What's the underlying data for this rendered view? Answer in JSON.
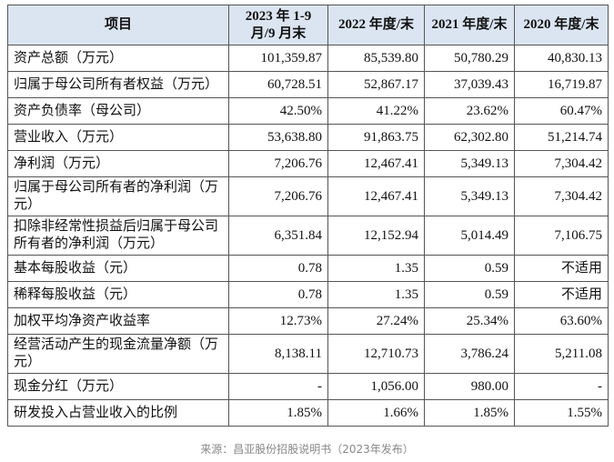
{
  "table": {
    "columns": [
      "项目",
      "2023 年 1-9 月/9 月末",
      "2022 年度/末",
      "2021 年度/末",
      "2020 年度/末"
    ],
    "rows": [
      [
        "资产总额（万元）",
        "101,359.87",
        "85,539.80",
        "50,780.29",
        "40,830.13"
      ],
      [
        "归属于母公司所有者权益（万元）",
        "60,728.51",
        "52,867.17",
        "37,039.43",
        "16,719.87"
      ],
      [
        "资产负债率（母公司）",
        "42.50%",
        "41.22%",
        "23.62%",
        "60.47%"
      ],
      [
        "营业收入（万元）",
        "53,638.80",
        "91,863.75",
        "62,302.80",
        "51,214.74"
      ],
      [
        "净利润（万元）",
        "7,206.76",
        "12,467.41",
        "5,349.13",
        "7,304.42"
      ],
      [
        "归属于母公司所有者的净利润（万元）",
        "7,206.76",
        "12,467.41",
        "5,349.13",
        "7,304.42"
      ],
      [
        "扣除非经常性损益后归属于母公司所有者的净利润（万元）",
        "6,351.84",
        "12,152.94",
        "5,014.49",
        "7,106.75"
      ],
      [
        "基本每股收益（元）",
        "0.78",
        "1.35",
        "0.59",
        "不适用"
      ],
      [
        "稀释每股收益（元）",
        "0.78",
        "1.35",
        "0.59",
        "不适用"
      ],
      [
        "加权平均净资产收益率",
        "12.73%",
        "27.24%",
        "25.34%",
        "63.60%"
      ],
      [
        "经营活动产生的现金流量净额（万元）",
        "8,138.11",
        "12,710.73",
        "3,786.24",
        "5,211.08"
      ],
      [
        "现金分红（万元）",
        "-",
        "1,056.00",
        "980.00",
        "-"
      ],
      [
        "研发投入占营业收入的比例",
        "1.85%",
        "1.66%",
        "1.85%",
        "1.55%"
      ]
    ]
  },
  "source": "来源：昌亚股份招股说明书（2023年发布）"
}
